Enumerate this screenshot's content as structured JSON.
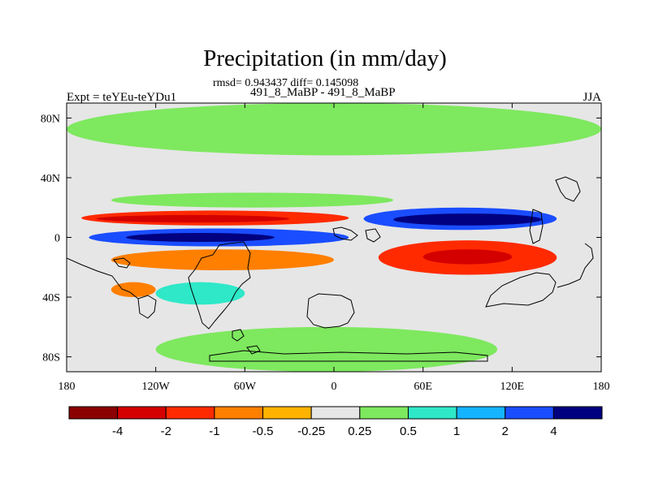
{
  "chart_data": {
    "type": "heatmap",
    "title": "Precipitation (in mm/day)",
    "stats_line": "rmsd= 0.943437 diff= 0.145098",
    "subtitle": "491_8_MaBP - 491_8_MaBP",
    "left_label": "Expt = teYEu-teYDu1",
    "right_label": "JJA",
    "projection": "cylindrical equidistant, centered on 180",
    "x_range": [
      -180,
      180
    ],
    "y_range": [
      -90,
      90
    ],
    "x_ticks": [
      {
        "lon": -180,
        "label": "180"
      },
      {
        "lon": -120,
        "label": "120W"
      },
      {
        "lon": -60,
        "label": "60W"
      },
      {
        "lon": 0,
        "label": "0"
      },
      {
        "lon": 60,
        "label": "60E"
      },
      {
        "lon": 120,
        "label": "120E"
      },
      {
        "lon": 180,
        "label": "180"
      }
    ],
    "y_ticks": [
      {
        "lat": 80,
        "label": "80N"
      },
      {
        "lat": 40,
        "label": "40N"
      },
      {
        "lat": 0,
        "label": "0"
      },
      {
        "lat": -40,
        "label": "40S"
      },
      {
        "lat": -80,
        "label": "80S"
      }
    ],
    "contour_levels": [
      -4,
      -2,
      -1,
      -0.5,
      -0.25,
      0.25,
      0.5,
      1,
      2,
      4
    ],
    "colorbar_labels": [
      "-4",
      "-2",
      "-1",
      "-0.5",
      "-0.25",
      "0.25",
      "0.5",
      "1",
      "2",
      "4"
    ],
    "colorbar_colors": [
      "#8b0000",
      "#d40000",
      "#ff2a00",
      "#ff7f00",
      "#ffb300",
      "#e6e6e6",
      "#7ee85f",
      "#2ee8c8",
      "#14b4ff",
      "#1a4dff",
      "#000080"
    ],
    "features": [
      {
        "name": "northern-high-latitude-wet",
        "lon": [
          -180,
          180
        ],
        "lat": [
          55,
          90
        ],
        "value": 0.35
      },
      {
        "name": "southern-high-latitude-wet",
        "lon": [
          -120,
          110
        ],
        "lat": [
          -90,
          -60
        ],
        "value": 0.35
      },
      {
        "name": "north-subtropical-wet-band",
        "lon": [
          -150,
          40
        ],
        "lat": [
          20,
          30
        ],
        "value": 0.4
      },
      {
        "name": "north-tropical-dry-band",
        "lon": [
          -170,
          10
        ],
        "lat": [
          8,
          18
        ],
        "value": -2
      },
      {
        "name": "north-tropical-strong-dry",
        "lon": [
          -160,
          -30
        ],
        "lat": [
          10,
          15
        ],
        "value": -4
      },
      {
        "name": "equatorial-wet-band",
        "lon": [
          -165,
          10
        ],
        "lat": [
          -6,
          6
        ],
        "value": 2
      },
      {
        "name": "equatorial-strong-wet",
        "lon": [
          -140,
          -40
        ],
        "lat": [
          -3,
          3
        ],
        "value": 4
      },
      {
        "name": "south-tropical-dry-band",
        "lon": [
          -150,
          0
        ],
        "lat": [
          -22,
          -8
        ],
        "value": -1
      },
      {
        "name": "east-hemisphere-wet-band",
        "lon": [
          20,
          150
        ],
        "lat": [
          5,
          20
        ],
        "value": 2
      },
      {
        "name": "east-hemisphere-strong-wet",
        "lon": [
          40,
          140
        ],
        "lat": [
          8,
          16
        ],
        "value": 4
      },
      {
        "name": "east-hemisphere-dry-band",
        "lon": [
          30,
          150
        ],
        "lat": [
          -25,
          -2
        ],
        "value": -2
      },
      {
        "name": "east-hemisphere-strong-dry",
        "lon": [
          60,
          120
        ],
        "lat": [
          -18,
          -8
        ],
        "value": -4
      },
      {
        "name": "south-pacific-wet",
        "lon": [
          -120,
          -60
        ],
        "lat": [
          -45,
          -30
        ],
        "value": 0.5
      },
      {
        "name": "south-atlantic-dry",
        "lon": [
          -150,
          -120
        ],
        "lat": [
          -40,
          -30
        ],
        "value": -1
      }
    ]
  }
}
